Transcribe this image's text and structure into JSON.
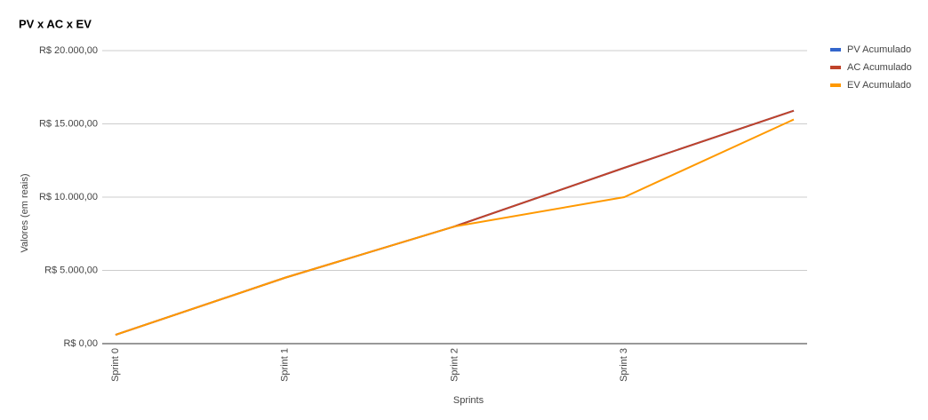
{
  "chart_data": {
    "type": "line",
    "title": "PV x AC x EV",
    "x_label": "Sprints",
    "y_label": "Valores (em reais)",
    "categories": [
      "Sprint 0",
      "Sprint 1",
      "Sprint 2",
      "Sprint 3",
      null
    ],
    "series": [
      {
        "name": "PV Acumulado",
        "color": "#3366cc",
        "values": [
          600,
          4500,
          8000,
          12000,
          15900
        ]
      },
      {
        "name": "AC Acumulado",
        "color": "#c0432a",
        "values": [
          600,
          4500,
          8000,
          12000,
          15900
        ]
      },
      {
        "name": "EV Acumulado",
        "color": "#ff9900",
        "values": [
          600,
          4500,
          8000,
          10000,
          15300
        ]
      }
    ],
    "ylim": [
      0,
      20000
    ],
    "yticks": [
      {
        "value": 0,
        "label": "R$ 0,00"
      },
      {
        "value": 5000,
        "label": "R$ 5.000,00"
      },
      {
        "value": 10000,
        "label": "R$ 10.000,00"
      },
      {
        "value": 15000,
        "label": "R$ 15.000,00"
      },
      {
        "value": 20000,
        "label": "R$ 20.000,00"
      }
    ],
    "grid": true,
    "legend": "right"
  }
}
